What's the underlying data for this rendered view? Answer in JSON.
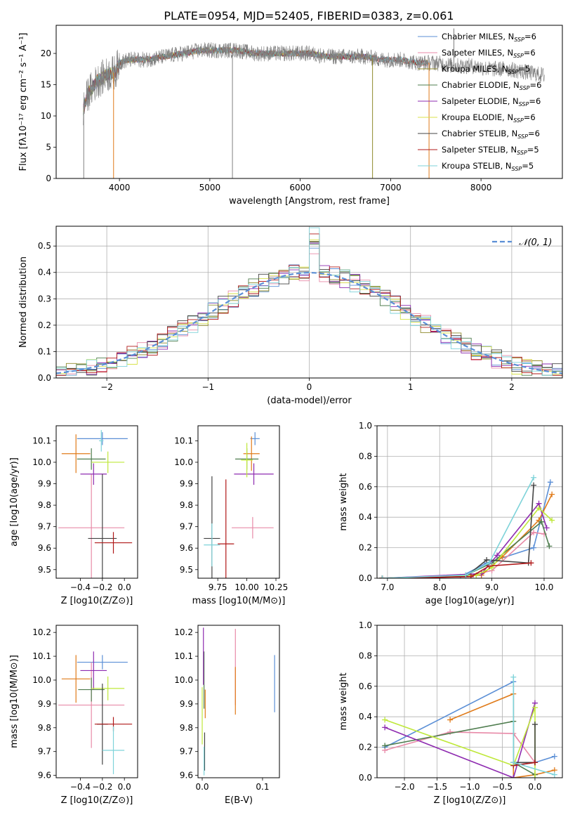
{
  "title": "PLATE=0954, MJD=52405, FIBERID=0383, z=0.061",
  "colors": {
    "Chabrier MILES": "#5b8fd6",
    "Salpeter MILES": "#e88aa8",
    "Kroupa MILES": "#8f8a2c",
    "Chabrier ELODIE": "#4f7d4f",
    "Salpeter ELODIE": "#8e2bb0",
    "Kroupa ELODIE": "#d8e24a",
    "Chabrier STELIB": "#444444",
    "Salpeter STELIB": "#b01818",
    "Kroupa STELIB": "#7ed3d9",
    "orange": "#e07b1a",
    "lightgreen": "#bfe83a",
    "data": "#808080",
    "normal": "#5b8fd6"
  },
  "chart_data": [
    {
      "id": "spectrum",
      "type": "line",
      "title": "PLATE=0954, MJD=52405, FIBERID=0383, z=0.061",
      "xlabel": "wavelength [Angstrom, rest frame]",
      "ylabel": "Flux [fλ10⁻¹⁷ erg cm⁻² s⁻¹ A⁻¹]",
      "xlim": [
        3300,
        8900
      ],
      "ylim": [
        0,
        24.5
      ],
      "xticks": [
        4000,
        5000,
        6000,
        7000,
        8000
      ],
      "yticks": [
        0,
        5,
        10,
        15,
        20
      ],
      "grid": false,
      "legend_position": "right",
      "legend": [
        "Chabrier MILES, N_SSP=6",
        "Salpeter MILES, N_SSP=6",
        "Kroupa MILES, N_SSP=5",
        "Chabrier ELODIE, N_SSP=6",
        "Salpeter ELODIE, N_SSP=6",
        "Kroupa ELODIE, N_SSP=6",
        "Chabrier STELIB, N_SSP=6",
        "Salpeter STELIB, N_SSP=5",
        "Kroupa STELIB, N_SSP=5"
      ],
      "data_anchor": {
        "x": [
          3600,
          3650,
          3750,
          3850,
          3950,
          4000,
          4100,
          4300,
          4500,
          4700,
          4900,
          5100,
          5300,
          5500,
          5700,
          5900,
          6100,
          6300,
          6500,
          6700,
          6900,
          7100,
          7300,
          7500,
          7700,
          7900,
          8100,
          8300,
          8500,
          8700
        ],
        "y": [
          11,
          13.5,
          15.5,
          16.5,
          17,
          18.5,
          19,
          19,
          19.5,
          20,
          20.5,
          20.5,
          20.5,
          20,
          20,
          20,
          20,
          19.5,
          19.5,
          19.5,
          19,
          19,
          18.5,
          18.5,
          18,
          18,
          17.5,
          17.5,
          17,
          16.5
        ]
      },
      "spikes": [
        {
          "x": 3605,
          "y": 0
        },
        {
          "x": 3935,
          "y": 0
        },
        {
          "x": 5250,
          "y": 0
        },
        {
          "x": 6800,
          "y": 0
        },
        {
          "x": 7425,
          "y": 0
        },
        {
          "x": 7700,
          "y": 24
        }
      ]
    },
    {
      "id": "residuals",
      "type": "line",
      "xlabel": "(data-model)/error",
      "ylabel": "Normed distribution",
      "xlim": [
        -2.5,
        2.5
      ],
      "ylim": [
        0,
        0.575
      ],
      "xticks": [
        -2,
        -1,
        0,
        1,
        2
      ],
      "xticklabels": [
        "−2",
        "−1",
        "0",
        "1",
        "2"
      ],
      "yticks": [
        0.0,
        0.1,
        0.2,
        0.3,
        0.4,
        0.5
      ],
      "grid": true,
      "legend": [
        "𝒩(0, 1)"
      ],
      "legend_position": "top-right",
      "bin_width": 0.1
    },
    {
      "id": "age_vs_Z",
      "type": "scatter",
      "xlabel": "Z [log10(Z/Z⊙)]",
      "ylabel": "age  [log10(age/yr)]",
      "xlim": [
        -0.62,
        0.12
      ],
      "ylim": [
        9.46,
        10.17
      ],
      "xticks": [
        -0.4,
        -0.2,
        0.0
      ],
      "yticks": [
        9.5,
        9.6,
        9.7,
        9.8,
        9.9,
        10.0,
        10.1
      ],
      "points": [
        {
          "x": -0.2,
          "y": 10.11,
          "xerr": 0.23,
          "yerr": 0.03,
          "series": "Chabrier MILES"
        },
        {
          "x": -0.3,
          "y": 9.695,
          "xerr": 0.3,
          "yerr": 0.25,
          "series": "Salpeter MILES"
        },
        {
          "x": -0.44,
          "y": 10.04,
          "xerr": 0.13,
          "yerr": 0.09,
          "series": "orange"
        },
        {
          "x": -0.3,
          "y": 10.015,
          "xerr": 0.13,
          "yerr": 0.05,
          "series": "Chabrier ELODIE"
        },
        {
          "x": -0.28,
          "y": 9.945,
          "xerr": 0.12,
          "yerr": 0.05,
          "series": "Salpeter ELODIE"
        },
        {
          "x": -0.15,
          "y": 10.0,
          "xerr": 0.15,
          "yerr": 0.05,
          "series": "lightgreen"
        },
        {
          "x": -0.2,
          "y": 9.645,
          "xerr": 0.13,
          "yerr": 0.3,
          "series": "Chabrier STELIB"
        },
        {
          "x": -0.1,
          "y": 9.625,
          "xerr": 0.17,
          "yerr": 0.05,
          "series": "Salpeter STELIB"
        },
        {
          "x": -0.21,
          "y": 10.1,
          "xerr": 0.02,
          "yerr": 0.05,
          "series": "Kroupa STELIB"
        }
      ]
    },
    {
      "id": "age_vs_mass",
      "type": "scatter",
      "xlabel": "mass [log10(M/M⊙)]",
      "ylabel": "",
      "xlim": [
        9.58,
        10.28
      ],
      "ylim": [
        9.46,
        10.17
      ],
      "xticks": [
        9.75,
        10.0,
        10.25
      ],
      "xticklabels": [
        "9.75",
        "10.00",
        "10.25"
      ],
      "yticks": [
        9.5,
        9.6,
        9.7,
        9.8,
        9.9,
        10.0,
        10.1
      ],
      "points": [
        {
          "x": 10.07,
          "y": 10.11,
          "xerr": 0.04,
          "yerr": 0.03,
          "series": "Chabrier MILES"
        },
        {
          "x": 10.05,
          "y": 9.695,
          "xerr": 0.18,
          "yerr": 0.05,
          "series": "Salpeter MILES"
        },
        {
          "x": 10.04,
          "y": 10.04,
          "xerr": 0.07,
          "yerr": 0.08,
          "series": "orange"
        },
        {
          "x": 10.0,
          "y": 10.015,
          "xerr": 0.1,
          "yerr": 0.05,
          "series": "Chabrier ELODIE"
        },
        {
          "x": 10.06,
          "y": 9.945,
          "xerr": 0.17,
          "yerr": 0.05,
          "series": "Salpeter ELODIE"
        },
        {
          "x": 10.0,
          "y": 10.01,
          "xerr": 0.05,
          "yerr": 0.08,
          "series": "lightgreen"
        },
        {
          "x": 9.7,
          "y": 9.645,
          "xerr": 0.07,
          "yerr": 0.29,
          "series": "Chabrier STELIB"
        },
        {
          "x": 9.82,
          "y": 9.62,
          "xerr": 0.07,
          "yerr": 0.3,
          "series": "Salpeter STELIB"
        },
        {
          "x": 9.7,
          "y": 9.615,
          "xerr": 0.07,
          "yerr": 0.1,
          "series": "Kroupa STELIB"
        }
      ]
    },
    {
      "id": "weight_vs_age",
      "type": "line",
      "xlabel": "age  [log10(age/yr)]",
      "ylabel": "mass weight",
      "xlim": [
        6.8,
        10.35
      ],
      "ylim": [
        0,
        1.0
      ],
      "xticks": [
        7,
        8,
        9,
        10
      ],
      "yticks": [
        0.0,
        0.2,
        0.4,
        0.6,
        0.8,
        1.0
      ],
      "grid": true,
      "series": [
        {
          "name": "Chabrier MILES",
          "x": [
            6.9,
            8.4,
            8.9,
            9.8,
            10.12
          ],
          "y": [
            0.0,
            0.01,
            0.1,
            0.2,
            0.63
          ]
        },
        {
          "name": "Salpeter MILES",
          "x": [
            6.9,
            8.6,
            9.0,
            9.8,
            10.0
          ],
          "y": [
            0.0,
            0.02,
            0.05,
            0.3,
            0.29
          ]
        },
        {
          "name": "orange",
          "x": [
            6.9,
            8.8,
            9.2,
            9.9,
            10.15
          ],
          "y": [
            0.0,
            0.02,
            0.14,
            0.38,
            0.55
          ]
        },
        {
          "name": "Chabrier ELODIE",
          "x": [
            6.9,
            8.5,
            9.0,
            9.95,
            10.1
          ],
          "y": [
            0.0,
            0.02,
            0.1,
            0.37,
            0.21
          ]
        },
        {
          "name": "Salpeter ELODIE",
          "x": [
            6.9,
            8.8,
            9.1,
            9.9,
            10.05
          ],
          "y": [
            0.0,
            0.03,
            0.15,
            0.49,
            0.33
          ]
        },
        {
          "name": "lightgreen",
          "x": [
            6.9,
            8.7,
            9.0,
            9.9,
            10.15
          ],
          "y": [
            0.0,
            0.02,
            0.07,
            0.46,
            0.38
          ]
        },
        {
          "name": "Chabrier STELIB",
          "x": [
            6.9,
            8.5,
            8.9,
            9.7,
            9.8
          ],
          "y": [
            0.0,
            0.01,
            0.12,
            0.1,
            0.61
          ]
        },
        {
          "name": "Salpeter STELIB",
          "x": [
            6.9,
            8.6,
            8.95,
            9.75
          ],
          "y": [
            0.0,
            0.01,
            0.08,
            0.1
          ]
        },
        {
          "name": "Kroupa STELIB",
          "x": [
            6.9,
            8.5,
            8.95,
            9.8
          ],
          "y": [
            0.0,
            0.02,
            0.1,
            0.66
          ]
        }
      ]
    },
    {
      "id": "mass_vs_Z",
      "type": "scatter",
      "xlabel": "Z [log10(Z/Z⊙)]",
      "ylabel": "mass [log10(M/M⊙)]",
      "xlim": [
        -0.62,
        0.12
      ],
      "ylim": [
        9.59,
        10.23
      ],
      "xticks": [
        -0.4,
        -0.2,
        0.0
      ],
      "yticks": [
        9.6,
        9.7,
        9.8,
        9.9,
        10.0,
        10.1,
        10.2
      ],
      "points": [
        {
          "x": -0.2,
          "y": 10.075,
          "xerr": 0.23,
          "yerr": 0.03,
          "series": "Chabrier MILES"
        },
        {
          "x": -0.3,
          "y": 9.895,
          "xerr": 0.3,
          "yerr": 0.18,
          "series": "Salpeter MILES"
        },
        {
          "x": -0.44,
          "y": 10.005,
          "xerr": 0.13,
          "yerr": 0.1,
          "series": "orange"
        },
        {
          "x": -0.3,
          "y": 9.96,
          "xerr": 0.12,
          "yerr": 0.05,
          "series": "Chabrier ELODIE"
        },
        {
          "x": -0.28,
          "y": 10.04,
          "xerr": 0.12,
          "yerr": 0.08,
          "series": "Salpeter ELODIE"
        },
        {
          "x": -0.15,
          "y": 9.965,
          "xerr": 0.15,
          "yerr": 0.05,
          "series": "lightgreen"
        },
        {
          "x": -0.2,
          "y": 9.815,
          "xerr": 0.05,
          "yerr": 0.17,
          "series": "Chabrier STELIB"
        },
        {
          "x": -0.1,
          "y": 9.815,
          "xerr": 0.17,
          "yerr": 0.03,
          "series": "Salpeter STELIB"
        },
        {
          "x": -0.1,
          "y": 9.705,
          "xerr": 0.1,
          "yerr": 0.1,
          "series": "Kroupa STELIB"
        }
      ]
    },
    {
      "id": "mass_vs_ebv",
      "type": "scatter",
      "xlabel": "E(B-V)",
      "ylabel": "",
      "xlim": [
        -0.007,
        0.128
      ],
      "ylim": [
        9.59,
        10.23
      ],
      "xticks": [
        0.0,
        0.1
      ],
      "xticklabels": [
        "0.0",
        "0.1"
      ],
      "yticks": [
        9.6,
        9.7,
        9.8,
        9.9,
        10.0,
        10.1,
        10.2
      ],
      "points": [
        {
          "x": 0.12,
          "y": 9.985,
          "yerr": 0.12,
          "series": "Chabrier MILES"
        },
        {
          "x": 0.055,
          "y": 10.055,
          "yerr": 0.16,
          "series": "Salpeter MILES"
        },
        {
          "x": 0.055,
          "y": 9.955,
          "yerr": 0.1,
          "series": "orange"
        },
        {
          "x": 0.005,
          "y": 9.9,
          "yerr": 0.06,
          "series": "orange"
        },
        {
          "x": 0.003,
          "y": 10.0,
          "yerr": 0.12,
          "series": "Chabrier ELODIE"
        },
        {
          "x": 0.002,
          "y": 10.1,
          "yerr": 0.12,
          "series": "Salpeter ELODIE"
        },
        {
          "x": 0.0,
          "y": 9.85,
          "yerr": 0.12,
          "series": "lightgreen"
        },
        {
          "x": 0.004,
          "y": 9.7,
          "yerr": 0.08,
          "series": "Chabrier STELIB"
        },
        {
          "x": 0.003,
          "y": 9.66,
          "yerr": 0.06,
          "series": "Kroupa STELIB"
        }
      ]
    },
    {
      "id": "weight_vs_Z",
      "type": "line",
      "xlabel": "Z [log10(Z/Z⊙)]",
      "ylabel": "mass weight",
      "xlim": [
        -2.42,
        0.42
      ],
      "ylim": [
        0,
        1.0
      ],
      "xticks": [
        -2.0,
        -1.5,
        -1.0,
        -0.5,
        0.0
      ],
      "xticklabels": [
        "−2.0",
        "−1.5",
        "−1.0",
        "−0.5",
        "0.0"
      ],
      "yticks": [
        0.0,
        0.2,
        0.4,
        0.6,
        0.8,
        1.0
      ],
      "grid": true,
      "series": [
        {
          "name": "Chabrier MILES",
          "x": [
            -2.3,
            -0.33,
            -0.33,
            0.0,
            0.3
          ],
          "y": [
            0.2,
            0.63,
            0.08,
            0.1,
            0.14
          ]
        },
        {
          "name": "Salpeter MILES",
          "x": [
            -2.3,
            -1.3,
            -0.33,
            0.0
          ],
          "y": [
            0.18,
            0.3,
            0.29,
            0.1
          ]
        },
        {
          "name": "orange",
          "x": [
            -1.3,
            -0.33,
            -0.33,
            0.0,
            0.3
          ],
          "y": [
            0.38,
            0.55,
            0.0,
            0.02,
            0.05
          ]
        },
        {
          "name": "Chabrier ELODIE",
          "x": [
            -2.3,
            -0.33,
            -0.33,
            0.0
          ],
          "y": [
            0.21,
            0.37,
            0.1,
            0.02
          ]
        },
        {
          "name": "Salpeter ELODIE",
          "x": [
            -2.3,
            -0.33,
            0.0
          ],
          "y": [
            0.33,
            0.0,
            0.49
          ]
        },
        {
          "name": "lightgreen",
          "x": [
            -2.3,
            -0.33,
            0.0,
            0.0
          ],
          "y": [
            0.38,
            0.08,
            0.46,
            0.0
          ]
        },
        {
          "name": "Chabrier STELIB",
          "x": [
            -0.33,
            0.0,
            0.0
          ],
          "y": [
            0.1,
            0.1,
            0.35
          ]
        },
        {
          "name": "Salpeter STELIB",
          "x": [
            -0.33,
            0.0
          ],
          "y": [
            0.08,
            0.1
          ]
        },
        {
          "name": "Kroupa STELIB",
          "x": [
            -0.33,
            -0.33,
            0.3
          ],
          "y": [
            0.66,
            0.1,
            0.02
          ]
        }
      ]
    }
  ]
}
